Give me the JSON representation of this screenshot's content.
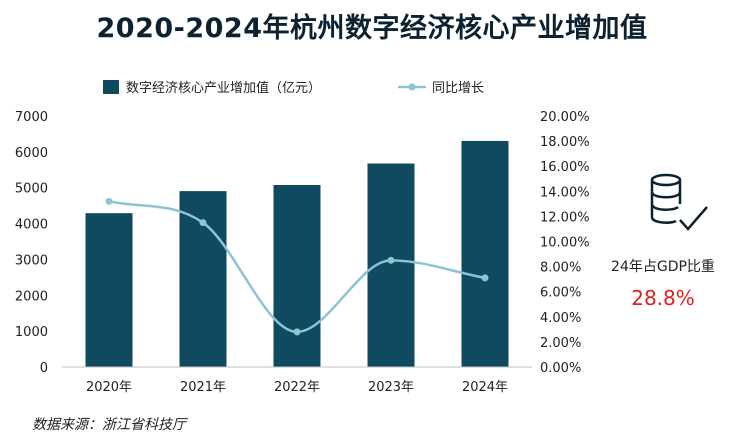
{
  "title": "2020-2024年杭州数字经济核心产业增加值",
  "source": "数据来源：浙江省科技厅",
  "kpi": {
    "icon": "database-check-icon",
    "label": "24年占GDP比重",
    "value": "28.8%",
    "color": "#e02020"
  },
  "colors": {
    "bar": "#0f4a60",
    "line": "#8fc3d3",
    "title": "#0c2230"
  },
  "chart_data": {
    "type": "bar",
    "categories": [
      "2020年",
      "2021年",
      "2022年",
      "2023年",
      "2024年"
    ],
    "series": [
      {
        "name": "数字经济核心产业增加值（亿元）",
        "type": "bar",
        "axis": "left",
        "values": [
          4290,
          4905,
          5076,
          5675,
          6305
        ]
      },
      {
        "name": "同比增长",
        "type": "line",
        "axis": "right",
        "smooth": true,
        "values": [
          0.132,
          0.115,
          0.028,
          0.085,
          0.071
        ]
      }
    ],
    "y_left": {
      "min": 0,
      "max": 7000,
      "step": 1000,
      "ticks": [
        "0",
        "1000",
        "2000",
        "3000",
        "4000",
        "5000",
        "6000",
        "7000"
      ]
    },
    "y_right": {
      "min": 0,
      "max": 0.2,
      "step": 0.02,
      "ticks": [
        "0.00%",
        "2.00%",
        "4.00%",
        "6.00%",
        "8.00%",
        "10.00%",
        "12.00%",
        "14.00%",
        "16.00%",
        "18.00%",
        "20.00%"
      ]
    },
    "legend_position": "top",
    "grid": false
  }
}
